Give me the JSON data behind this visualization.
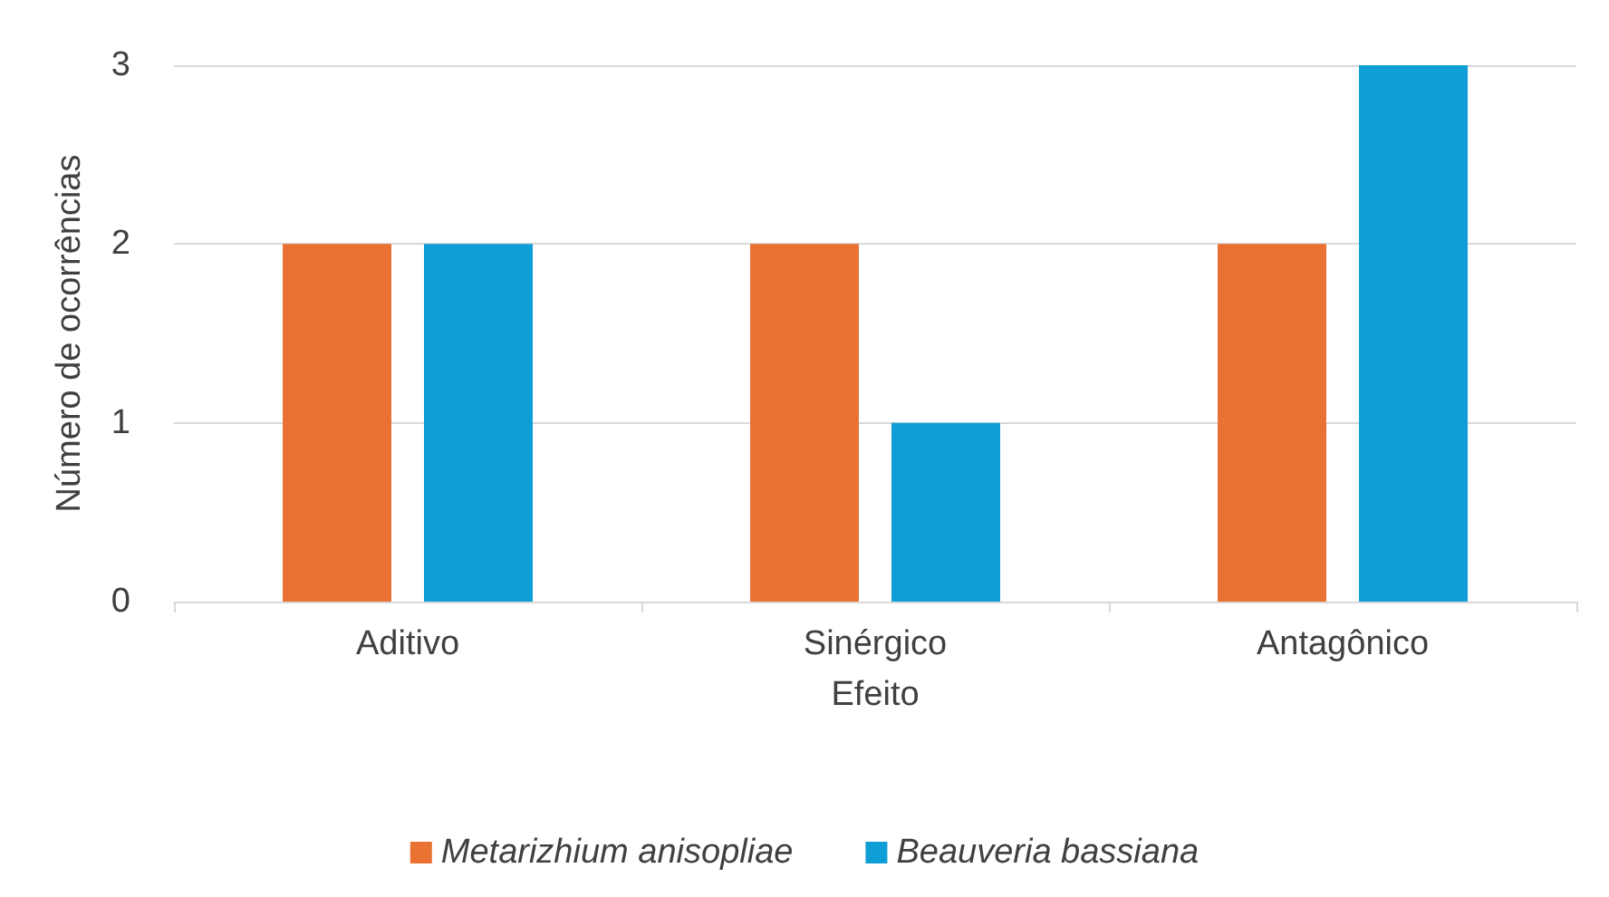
{
  "chart_data": {
    "type": "bar",
    "xlabel": "Efeito",
    "ylabel": "Número de ocorrências",
    "categories": [
      "Aditivo",
      "Sinérgico",
      "Antagônico"
    ],
    "series": [
      {
        "name": "Metarizhium anisopliae",
        "color": "#e97132",
        "values": [
          2,
          2,
          2
        ]
      },
      {
        "name": "Beauveria bassiana",
        "color": "#0f9ed5",
        "values": [
          2,
          1,
          3
        ]
      }
    ],
    "ylim": [
      0,
      3
    ],
    "yticks": [
      0,
      1,
      2,
      3
    ],
    "grid": "y",
    "legend": "bottom"
  }
}
